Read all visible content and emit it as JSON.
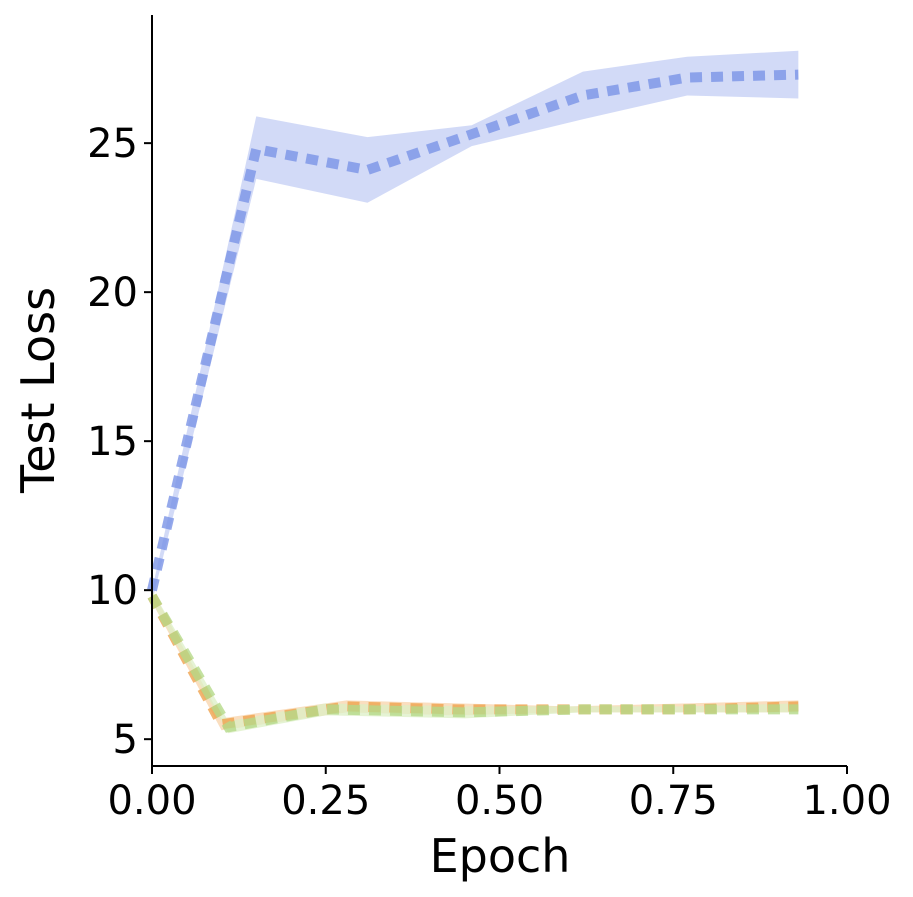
{
  "chart_data": {
    "type": "line",
    "x_label": "Epoch",
    "y_label": "Test Loss",
    "xlim": [
      0,
      1
    ],
    "ylim": [
      4.1,
      29.3
    ],
    "xticks": [
      {
        "value": 0,
        "label": "0.00"
      },
      {
        "value": 0.25,
        "label": "0.25"
      },
      {
        "value": 0.5,
        "label": "0.50"
      },
      {
        "value": 0.75,
        "label": "0.75"
      },
      {
        "value": 1,
        "label": "1.00"
      }
    ],
    "yticks": [
      5,
      10,
      15,
      20,
      25
    ],
    "series": [
      {
        "color": "#7b93e6",
        "band_color": "#c3cdf4",
        "x": [
          0,
          0.15,
          0.31,
          0.46,
          0.62,
          0.77,
          0.93
        ],
        "values": [
          10.0,
          24.8,
          24.1,
          25.3,
          26.6,
          27.2,
          27.3
        ],
        "lower": [
          9.6,
          23.8,
          23.0,
          24.9,
          25.8,
          26.6,
          26.5
        ],
        "upper": [
          10.0,
          25.9,
          25.2,
          25.6,
          27.4,
          27.9,
          28.1
        ]
      },
      {
        "color": "#efa24f",
        "band_color": "#f8d3aa",
        "x": [
          0,
          0.1,
          0.28,
          0.44,
          0.6,
          0.77,
          0.93
        ],
        "values": [
          9.8,
          5.5,
          6.1,
          6.0,
          6.0,
          6.0,
          6.1
        ],
        "lower": [
          9.6,
          5.3,
          5.9,
          5.8,
          5.9,
          5.9,
          5.9
        ],
        "upper": [
          10.0,
          5.7,
          6.3,
          6.2,
          6.1,
          6.2,
          6.3
        ]
      },
      {
        "color": "#b5d98a",
        "band_color": "#dcefc6",
        "x": [
          0,
          0.11,
          0.25,
          0.45,
          0.62,
          0.77,
          0.93
        ],
        "values": [
          9.8,
          5.4,
          6.0,
          5.9,
          6.0,
          6.0,
          6.0
        ],
        "lower": [
          9.6,
          5.2,
          5.8,
          5.7,
          5.9,
          5.9,
          5.9
        ],
        "upper": [
          10.0,
          5.6,
          6.2,
          6.1,
          6.1,
          6.1,
          6.2
        ]
      }
    ]
  }
}
